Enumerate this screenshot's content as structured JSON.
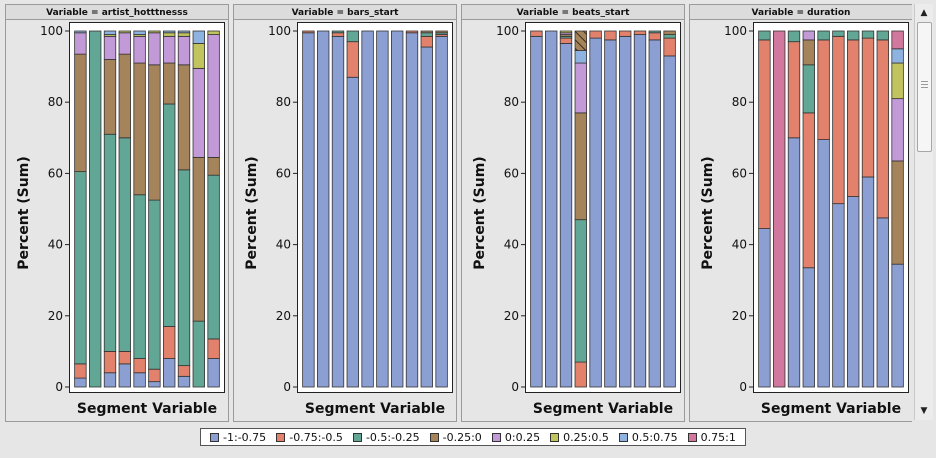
{
  "chart_data": {
    "type": "bar",
    "stacked": true,
    "ylabel": "Percent (Sum)",
    "xlabel": "Segment Variable",
    "ylim": [
      0,
      100
    ],
    "yticks": [
      0,
      20,
      40,
      60,
      80,
      100
    ],
    "legend": {
      "placement": "bottom",
      "items": [
        {
          "label": "-1:-0.75",
          "color": "#8c9fd3"
        },
        {
          "label": "-0.75:-0.5",
          "color": "#e2826c"
        },
        {
          "label": "-0.5:-0.25",
          "color": "#62a696"
        },
        {
          "label": "-0.25:0",
          "color": "#a6845b"
        },
        {
          "label": "0:0.25",
          "color": "#c39ad8"
        },
        {
          "label": "0.25:0.5",
          "color": "#c1c35f"
        },
        {
          "label": "0.5:0.75",
          "color": "#8fb3e0"
        },
        {
          "label": "0.75:1",
          "color": "#d2789e"
        }
      ]
    },
    "panels": [
      {
        "title": "Variable = artist_hotttnesss",
        "bars": [
          [
            2.5,
            4,
            54,
            33,
            6,
            0,
            0.5,
            0
          ],
          [
            0,
            0,
            100,
            0,
            0,
            0,
            0,
            0
          ],
          [
            4,
            6,
            61,
            21,
            6.5,
            0.5,
            1,
            0
          ],
          [
            6.5,
            3.5,
            60,
            23.5,
            6,
            0.5,
            0,
            0
          ],
          [
            4,
            4,
            46,
            37,
            7.5,
            0.5,
            1,
            0
          ],
          [
            1.5,
            3.5,
            47.5,
            38,
            9,
            0.5,
            0,
            0
          ],
          [
            8,
            9,
            62.5,
            11.5,
            7.5,
            1,
            0.5,
            0
          ],
          [
            3,
            3,
            55,
            29.5,
            8,
            1,
            0.5,
            0
          ],
          [
            0,
            0,
            18.5,
            46,
            25,
            7,
            3.5,
            0
          ],
          [
            8,
            5.5,
            46,
            5,
            34.5,
            1,
            0,
            0
          ]
        ]
      },
      {
        "title": "Variable = bars_start",
        "bars": [
          [
            99.5,
            0.5,
            0,
            0,
            0,
            0,
            0,
            0
          ],
          [
            100,
            0,
            0,
            0,
            0,
            0,
            0,
            0
          ],
          [
            98.5,
            1,
            0.5,
            0,
            0,
            0,
            0,
            0
          ],
          [
            87,
            10,
            3,
            0,
            0,
            0,
            0,
            0
          ],
          [
            100,
            0,
            0,
            0,
            0,
            0,
            0,
            0
          ],
          [
            100,
            0,
            0,
            0,
            0,
            0,
            0,
            0
          ],
          [
            100,
            0,
            0,
            0,
            0,
            0,
            0,
            0
          ],
          [
            99.5,
            0.5,
            0,
            0,
            0,
            0,
            0,
            0
          ],
          [
            95.5,
            3,
            1,
            0.5,
            0,
            0,
            0,
            0
          ],
          [
            98.5,
            0.5,
            0.5,
            0.5,
            0,
            0,
            0,
            0
          ]
        ]
      },
      {
        "title": "Variable = beats_start",
        "bars": [
          [
            98.5,
            1.5,
            0,
            0,
            0,
            0,
            0,
            0
          ],
          [
            100,
            0,
            0,
            0,
            0,
            0,
            0,
            0
          ],
          [
            96.5,
            1.5,
            0.5,
            0.5,
            0.5,
            0.5,
            0,
            0
          ],
          [
            0,
            7,
            40,
            30,
            14,
            0,
            3.5,
            5.5
          ],
          [
            98,
            2,
            0,
            0,
            0,
            0,
            0,
            0
          ],
          [
            97.5,
            2.5,
            0,
            0,
            0,
            0,
            0,
            0
          ],
          [
            98.5,
            1.5,
            0,
            0,
            0,
            0,
            0,
            0
          ],
          [
            99,
            1,
            0,
            0,
            0,
            0,
            0,
            0
          ],
          [
            97.5,
            2,
            0.5,
            0,
            0,
            0,
            0,
            0
          ],
          [
            93,
            5,
            1,
            1,
            0,
            0,
            0,
            0
          ]
        ]
      },
      {
        "title": "Variable = duration",
        "bars": [
          [
            44.5,
            53,
            2.5,
            0,
            0,
            0,
            0,
            0
          ],
          [
            0,
            0,
            0,
            0,
            0,
            0,
            0,
            100
          ],
          [
            70,
            27,
            3,
            0,
            0,
            0,
            0,
            0
          ],
          [
            33.5,
            43.5,
            13.5,
            7,
            2.5,
            0,
            0,
            0
          ],
          [
            69.5,
            28,
            2.5,
            0,
            0,
            0,
            0,
            0
          ],
          [
            51.5,
            47,
            1.5,
            0,
            0,
            0,
            0,
            0
          ],
          [
            53.5,
            44,
            2.5,
            0,
            0,
            0,
            0,
            0
          ],
          [
            59,
            39,
            2,
            0,
            0,
            0,
            0,
            0
          ],
          [
            47.5,
            50,
            2.5,
            0,
            0,
            0,
            0,
            0
          ],
          [
            34.5,
            0,
            0,
            29,
            17.5,
            10,
            4,
            5
          ]
        ]
      }
    ]
  }
}
